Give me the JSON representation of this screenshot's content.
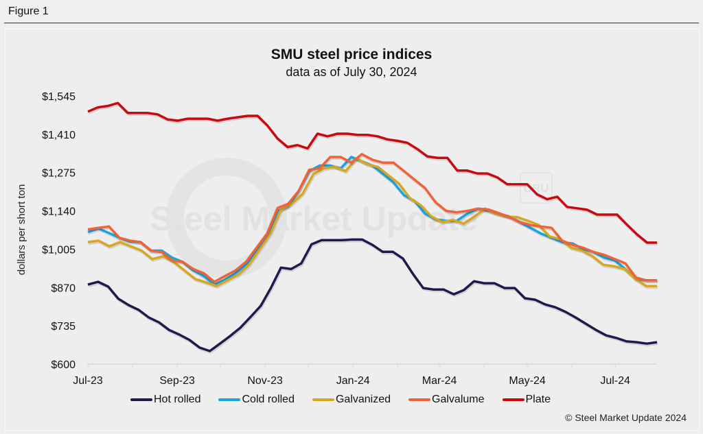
{
  "figure_label": "Figure 1",
  "copyright": "© Steel Market Update 2024",
  "watermark": {
    "text": "Steel Market Update",
    "badge": "CRU"
  },
  "chart_data": {
    "type": "line",
    "title": "SMU steel price indices",
    "subtitle": "data as of July 30, 2024",
    "xlabel": "",
    "ylabel": "dollars per short ton",
    "ylim": [
      600,
      1545
    ],
    "yticks": [
      600,
      735,
      870,
      1005,
      1140,
      1275,
      1410,
      1545
    ],
    "ytick_labels": [
      "$600",
      "$735",
      "$870",
      "$1,005",
      "$1,140",
      "$1,275",
      "$1,410",
      "$1,545"
    ],
    "xtick_labels": [
      "Jul-23",
      "Sep-23",
      "Nov-23",
      "Jan-24",
      "Mar-24",
      "May-24",
      "Jul-24"
    ],
    "x_start": "2023-07-01",
    "x_end": "2024-07-30",
    "x_frequency": "weekly",
    "legend_position": "bottom",
    "grid": false,
    "series": [
      {
        "name": "Hot rolled",
        "color": "#1f1a4d",
        "values": [
          880,
          890,
          873,
          830,
          808,
          791,
          764,
          747,
          720,
          704,
          685,
          658,
          646,
          672,
          699,
          728,
          766,
          805,
          868,
          940,
          935,
          955,
          1022,
          1037,
          1037,
          1037,
          1039,
          1039,
          1020,
          996,
          996,
          972,
          917,
          868,
          863,
          863,
          846,
          861,
          892,
          885,
          885,
          868,
          868,
          832,
          827,
          810,
          800,
          784,
          764,
          742,
          720,
          701,
          692,
          680,
          677,
          672,
          677
        ]
      },
      {
        "name": "Cold rolled",
        "color": "#1ba3de",
        "values": [
          1065,
          1078,
          1062,
          1045,
          1032,
          1030,
          1000,
          1000,
          975,
          960,
          930,
          910,
          880,
          897,
          920,
          950,
          1000,
          1050,
          1140,
          1155,
          1210,
          1280,
          1300,
          1300,
          1290,
          1330,
          1315,
          1300,
          1270,
          1240,
          1195,
          1175,
          1130,
          1110,
          1105,
          1105,
          1130,
          1148,
          1140,
          1130,
          1120,
          1100,
          1080,
          1060,
          1045,
          1030,
          1025,
          1005,
          995,
          975,
          965,
          935,
          900,
          895,
          895
        ]
      },
      {
        "name": "Galvanized",
        "color": "#d9a621",
        "values": [
          1030,
          1035,
          1015,
          1030,
          1015,
          1000,
          970,
          980,
          960,
          930,
          900,
          888,
          875,
          895,
          915,
          950,
          1005,
          1060,
          1145,
          1165,
          1200,
          1270,
          1290,
          1295,
          1280,
          1325,
          1305,
          1295,
          1265,
          1235,
          1185,
          1160,
          1120,
          1100,
          1108,
          1095,
          1120,
          1148,
          1130,
          1120,
          1118,
          1105,
          1090,
          1050,
          1040,
          1010,
          1000,
          980,
          950,
          945,
          935,
          900,
          875,
          875
        ]
      },
      {
        "name": "Galvalume",
        "color": "#f0633a",
        "values": [
          1075,
          1080,
          1085,
          1045,
          1035,
          1030,
          1000,
          995,
          965,
          960,
          935,
          920,
          890,
          910,
          930,
          960,
          1010,
          1060,
          1150,
          1165,
          1210,
          1285,
          1290,
          1330,
          1330,
          1310,
          1340,
          1320,
          1310,
          1310,
          1280,
          1250,
          1220,
          1170,
          1140,
          1135,
          1140,
          1148,
          1145,
          1132,
          1118,
          1100,
          1090,
          1085,
          1080,
          1035,
          1020,
          1010,
          995,
          985,
          970,
          955,
          905,
          895,
          895
        ]
      },
      {
        "name": "Plate",
        "color": "#c8090f",
        "values": [
          1490,
          1505,
          1510,
          1520,
          1485,
          1485,
          1485,
          1480,
          1462,
          1458,
          1465,
          1465,
          1465,
          1458,
          1465,
          1470,
          1475,
          1475,
          1440,
          1395,
          1365,
          1372,
          1360,
          1412,
          1403,
          1412,
          1412,
          1408,
          1408,
          1403,
          1392,
          1387,
          1380,
          1358,
          1332,
          1327,
          1327,
          1282,
          1282,
          1272,
          1272,
          1258,
          1234,
          1234,
          1234,
          1198,
          1181,
          1190,
          1154,
          1149,
          1144,
          1127,
          1127,
          1127,
          1091,
          1057,
          1028,
          1028
        ]
      }
    ]
  }
}
